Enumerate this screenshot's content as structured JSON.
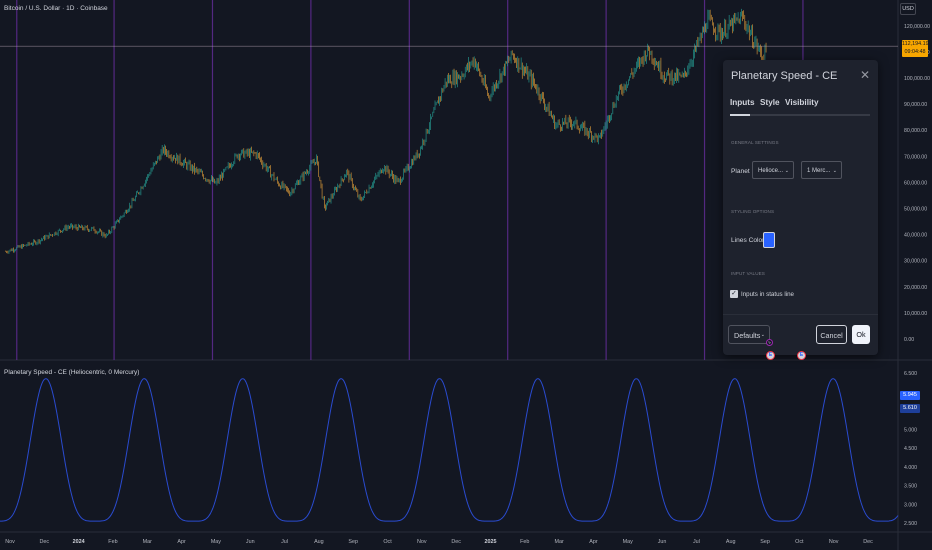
{
  "symbol_title": "Bitcoin / U.S. Dollar · 1D · Coinbase",
  "currency": "USD",
  "current_price": "112,194.19",
  "countdown": "09:04:48",
  "price_axis": [
    {
      "label": "120,000.00",
      "value": 120000
    },
    {
      "label": "110,000.00",
      "value": 110000
    },
    {
      "label": "100,000.00",
      "value": 100000
    },
    {
      "label": "90,000.00",
      "value": 90000
    },
    {
      "label": "80,000.00",
      "value": 80000
    },
    {
      "label": "70,000.00",
      "value": 70000
    },
    {
      "label": "60,000.00",
      "value": 60000
    },
    {
      "label": "50,000.00",
      "value": 50000
    },
    {
      "label": "40,000.00",
      "value": 40000
    },
    {
      "label": "30,000.00",
      "value": 30000
    },
    {
      "label": "20,000.00",
      "value": 20000
    },
    {
      "label": "10,000.00",
      "value": 10000
    },
    {
      "label": "0.00",
      "value": 0
    }
  ],
  "time_axis": [
    "Nov",
    "Dec",
    "2024",
    "Feb",
    "Mar",
    "Apr",
    "May",
    "Jun",
    "Jul",
    "Aug",
    "Sep",
    "Oct",
    "Nov",
    "Dec",
    "2025",
    "Feb",
    "Mar",
    "Apr",
    "May",
    "Jun",
    "Jul",
    "Aug",
    "Sep",
    "Oct",
    "Nov",
    "Dec"
  ],
  "indicator_title": "Planetary Speed - CE (Heliocentric, 0 Mercury)",
  "indicator_axis": [
    {
      "label": "6.500",
      "value": 6.5
    },
    {
      "label": "5.000",
      "value": 5.0
    },
    {
      "label": "4.500",
      "value": 4.5
    },
    {
      "label": "4.000",
      "value": 4.0
    },
    {
      "label": "3.500",
      "value": 3.5
    },
    {
      "label": "3.000",
      "value": 3.0
    },
    {
      "label": "2.500",
      "value": 2.5
    }
  ],
  "indicator_values": {
    "v1": "5.945",
    "v2": "5.610"
  },
  "colors": {
    "background": "#131722",
    "wave": "#2a4bd0",
    "vline": "#5b2a8c",
    "price_line": "#b5a4b4",
    "tag": "#f7a600",
    "accent": "#2962ff"
  },
  "dialog": {
    "title": "Planetary Speed - CE",
    "tabs": [
      "Inputs",
      "Style",
      "Visibility"
    ],
    "active_tab": "Inputs",
    "general_header": "GENERAL SETTINGS",
    "planet_label": "Planet :",
    "planet_type": "Helioce...",
    "planet_name": "1 Merc...",
    "styling_header": "STYLING OPTIONS",
    "lines_color_label": "Lines Color",
    "lines_color": "#2962ff",
    "input_values_header": "INPUT VALUES",
    "inputs_in_status_line": "Inputs in status line",
    "inputs_in_status_checked": true,
    "defaults_label": "Defaults",
    "cancel_label": "Cancel",
    "ok_label": "Ok"
  },
  "icons": [
    "close-icon",
    "chevron-down-icon",
    "check-icon",
    "earnings-event-icon",
    "lightning-event-icon"
  ],
  "chart_data": [
    {
      "type": "candlestick",
      "title": "Bitcoin / U.S. Dollar · 1D · Coinbase",
      "ylim": [
        0,
        125000
      ],
      "x_range": [
        "2023-10-20",
        "2025-12-31"
      ],
      "series": [
        {
          "values": [
            [
              "2023-10-25",
              33500
            ],
            [
              "2023-11-20",
              37000
            ],
            [
              "2023-12-20",
              43000
            ],
            [
              "2024-01-12",
              42000
            ],
            [
              "2024-01-23",
              39500
            ],
            [
              "2024-02-15",
              52000
            ],
            [
              "2024-03-05",
              66000
            ],
            [
              "2024-03-14",
              72500
            ],
            [
              "2024-04-01",
              67500
            ],
            [
              "2024-04-30",
              59500
            ],
            [
              "2024-05-20",
              71000
            ],
            [
              "2024-06-05",
              71000
            ],
            [
              "2024-06-24",
              60000
            ],
            [
              "2024-07-05",
              56000
            ],
            [
              "2024-07-29",
              69000
            ],
            [
              "2024-08-05",
              50000
            ],
            [
              "2024-08-25",
              64000
            ],
            [
              "2024-09-06",
              53000
            ],
            [
              "2024-09-27",
              66000
            ],
            [
              "2024-10-10",
              60000
            ],
            [
              "2024-10-29",
              72000
            ],
            [
              "2024-11-12",
              88000
            ],
            [
              "2024-11-22",
              99000
            ],
            [
              "2024-12-05",
              101000
            ],
            [
              "2024-12-17",
              107000
            ],
            [
              "2024-12-30",
              93000
            ],
            [
              "2025-01-20",
              109000
            ],
            [
              "2025-02-10",
              97000
            ],
            [
              "2025-02-28",
              82000
            ],
            [
              "2025-03-15",
              83000
            ],
            [
              "2025-04-08",
              76500
            ],
            [
              "2025-04-25",
              94000
            ],
            [
              "2025-05-22",
              111000
            ],
            [
              "2025-06-05",
              101000
            ],
            [
              "2025-06-22",
              100000
            ],
            [
              "2025-07-14",
              122000
            ],
            [
              "2025-07-25",
              117000
            ],
            [
              "2025-08-14",
              123500
            ],
            [
              "2025-08-22",
              116000
            ],
            [
              "2025-09-01",
              108000
            ],
            [
              "2025-09-05",
              112194
            ]
          ]
        }
      ]
    },
    {
      "type": "line",
      "title": "Planetary Speed - CE (Heliocentric, 0 Mercury)",
      "ylim": [
        2.5,
        6.5
      ],
      "x_range": [
        "2023-10-20",
        "2025-12-31"
      ],
      "series": [
        {
          "name": "Mercury heliocentric speed",
          "period_days": 88,
          "max": 6.35,
          "min": 2.55,
          "peak_dates": [
            "2023-11-30",
            "2024-02-26",
            "2024-05-24",
            "2024-08-20",
            "2024-11-16",
            "2025-02-12",
            "2025-05-11",
            "2025-08-07",
            "2025-11-03"
          ]
        }
      ]
    }
  ],
  "planet_lines": [
    "2023-11-04",
    "2024-01-30",
    "2024-04-27",
    "2024-07-24",
    "2024-10-20",
    "2025-01-16",
    "2025-04-14",
    "2025-07-11",
    "2025-10-07"
  ]
}
